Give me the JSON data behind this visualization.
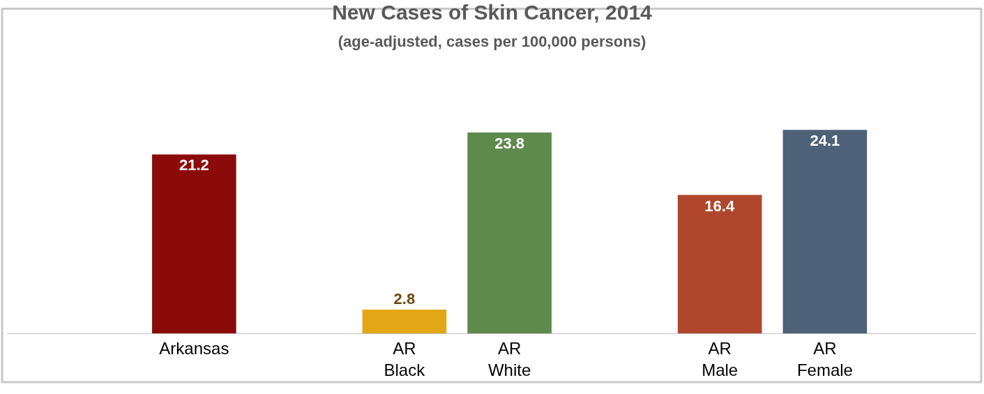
{
  "chart_data": {
    "type": "bar",
    "title": "New Cases of Skin Cancer, 2014",
    "subtitle": "(age-adjusted, cases per 100,000 persons)",
    "categories": [
      "Arkansas",
      null,
      "AR Black",
      "AR White",
      null,
      "AR Male",
      "AR Female"
    ],
    "values": [
      21.2,
      null,
      2.8,
      23.8,
      null,
      16.4,
      24.1
    ],
    "colors": [
      "#8b0b0b",
      "#cccccc",
      "#e3a614",
      "#5e8a4c",
      "#cccccc",
      "#b0472c",
      "#4d6179"
    ],
    "data_labels": true
  }
}
